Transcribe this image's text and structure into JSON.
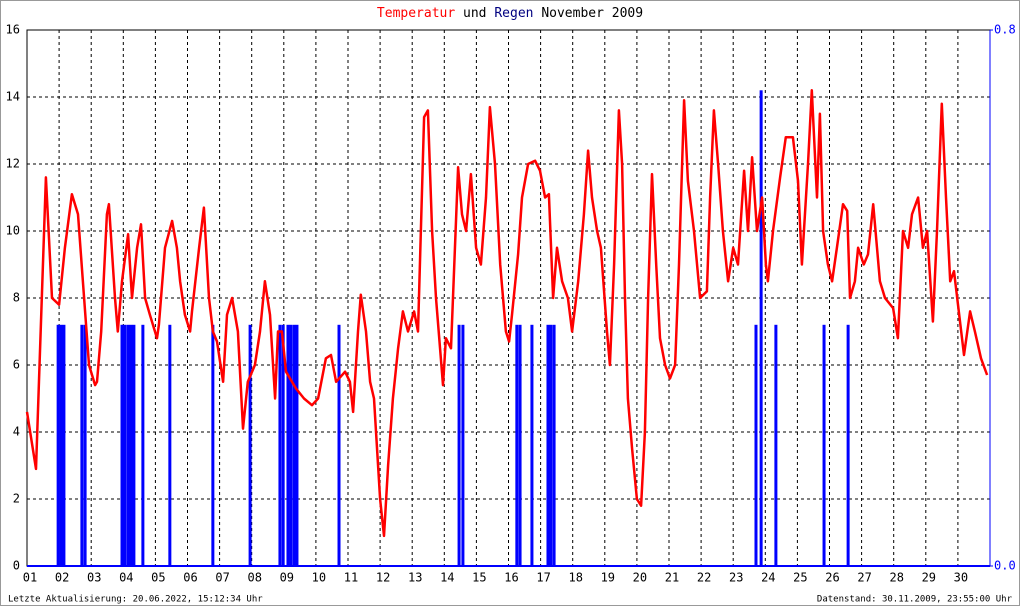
{
  "chart_data": {
    "type": "line",
    "title_connector": "und",
    "title_period": "November 2009",
    "footer_left": "Letzte Aktualisierung: 20.06.2022, 15:12:34 Uhr",
    "footer_right": "Datenstand: 30.11.2009, 23:55:00 Uhr",
    "xlim": [
      1,
      31
    ],
    "xticks": [
      {
        "value": 1,
        "label": "01"
      },
      {
        "value": 2,
        "label": "02"
      },
      {
        "value": 3,
        "label": "03"
      },
      {
        "value": 4,
        "label": "04"
      },
      {
        "value": 5,
        "label": "05"
      },
      {
        "value": 6,
        "label": "06"
      },
      {
        "value": 7,
        "label": "07"
      },
      {
        "value": 8,
        "label": "08"
      },
      {
        "value": 9,
        "label": "09"
      },
      10,
      11,
      12,
      13,
      14,
      15,
      16,
      17,
      18,
      19,
      20,
      21,
      22,
      23,
      24,
      25,
      26,
      27,
      28,
      29,
      30
    ],
    "ylim": [
      0,
      16
    ],
    "yticks": [
      0,
      2,
      4,
      6,
      8,
      10,
      12,
      14,
      16
    ],
    "y2lim": [
      0,
      0.8
    ],
    "y2ticks": [
      {
        "value": 0,
        "label": "0.0"
      },
      {
        "value": 0.8,
        "label": "0.8"
      }
    ],
    "grid": true,
    "series": [
      {
        "name": "Temperatur",
        "color": "#ff0000",
        "x": [
          1.0,
          1.28,
          1.59,
          1.78,
          2.0,
          2.18,
          2.4,
          2.59,
          2.78,
          2.93,
          3.12,
          3.18,
          3.31,
          3.49,
          3.55,
          3.74,
          3.83,
          3.96,
          4.15,
          4.27,
          4.43,
          4.55,
          4.68,
          4.83,
          5.05,
          5.11,
          5.3,
          5.52,
          5.67,
          5.77,
          5.92,
          6.08,
          6.14,
          6.36,
          6.51,
          6.67,
          6.79,
          6.92,
          7.11,
          7.23,
          7.39,
          7.57,
          7.73,
          7.88,
          8.1,
          8.26,
          8.41,
          8.57,
          8.73,
          8.82,
          8.94,
          9.07,
          9.38,
          9.63,
          9.88,
          10.07,
          10.31,
          10.47,
          10.63,
          10.91,
          11.06,
          11.16,
          11.31,
          11.4,
          11.56,
          11.69,
          11.81,
          12.0,
          12.12,
          12.25,
          12.4,
          12.56,
          12.71,
          12.87,
          13.06,
          13.18,
          13.37,
          13.49,
          13.62,
          13.74,
          13.96,
          14.05,
          14.21,
          14.43,
          14.55,
          14.68,
          14.83,
          14.99,
          15.14,
          15.3,
          15.42,
          15.58,
          15.74,
          15.92,
          16.02,
          16.11,
          16.3,
          16.42,
          16.61,
          16.83,
          16.98,
          17.14,
          17.26,
          17.39,
          17.51,
          17.67,
          17.85,
          17.98,
          18.17,
          18.35,
          18.48,
          18.6,
          18.76,
          18.88,
          19.07,
          19.16,
          19.29,
          19.44,
          19.54,
          19.63,
          19.72,
          19.85,
          20.0,
          20.13,
          20.25,
          20.35,
          20.47,
          20.6,
          20.72,
          20.88,
          21.03,
          21.19,
          21.31,
          21.47,
          21.59,
          21.78,
          21.97,
          22.18,
          22.28,
          22.4,
          22.53,
          22.68,
          22.84,
          23.0,
          23.15,
          23.34,
          23.46,
          23.59,
          23.74,
          23.9,
          24.02,
          24.08,
          24.24,
          24.46,
          24.64,
          24.86,
          25.02,
          25.14,
          25.33,
          25.45,
          25.61,
          25.7,
          25.8,
          25.95,
          26.08,
          26.23,
          26.42,
          26.55,
          26.64,
          26.79,
          26.89,
          27.07,
          27.2,
          27.36,
          27.48,
          27.57,
          27.73,
          27.98,
          28.13,
          28.29,
          28.45,
          28.57,
          28.76,
          28.91,
          29.04,
          29.22,
          29.35,
          29.5,
          29.63,
          29.76,
          29.88,
          30.19,
          30.38,
          30.53,
          30.72,
          30.91
        ],
        "values": [
          4.6,
          2.9,
          11.6,
          8.0,
          7.8,
          9.5,
          11.1,
          10.5,
          8.0,
          6.0,
          5.4,
          5.5,
          7.0,
          10.5,
          10.8,
          8.0,
          7.0,
          8.5,
          9.9,
          8.0,
          9.5,
          10.2,
          8.0,
          7.5,
          6.8,
          7.2,
          9.5,
          10.3,
          9.5,
          8.5,
          7.5,
          7.0,
          7.6,
          9.5,
          10.7,
          8.0,
          7.0,
          6.7,
          5.5,
          7.5,
          8.0,
          7.0,
          4.1,
          5.5,
          6.0,
          7.0,
          8.5,
          7.5,
          5.0,
          7.0,
          7.0,
          5.8,
          5.3,
          5.0,
          4.8,
          5.0,
          6.2,
          6.3,
          5.5,
          5.8,
          5.5,
          4.6,
          7.0,
          8.1,
          7.0,
          5.5,
          5.0,
          2.0,
          0.9,
          3.0,
          5.0,
          6.5,
          7.6,
          7.0,
          7.6,
          7.0,
          13.4,
          13.6,
          10.0,
          8.0,
          5.4,
          6.8,
          6.5,
          11.9,
          10.5,
          10.0,
          11.7,
          9.5,
          9.0,
          11.0,
          13.7,
          12.0,
          9.0,
          7.0,
          6.7,
          7.5,
          9.3,
          11.0,
          12.0,
          12.1,
          11.8,
          11.0,
          11.1,
          8.0,
          9.5,
          8.5,
          8.0,
          7.0,
          8.5,
          10.5,
          12.4,
          11.0,
          10.0,
          9.5,
          7.0,
          6.0,
          9.0,
          13.6,
          12.0,
          8.0,
          5.0,
          3.5,
          2.0,
          1.8,
          4.0,
          8.0,
          11.7,
          9.0,
          6.8,
          6.0,
          5.6,
          6.0,
          9.0,
          13.9,
          11.5,
          10.0,
          8.0,
          8.2,
          11.0,
          13.6,
          12.0,
          10.0,
          8.5,
          9.5,
          9.0,
          11.8,
          10.0,
          12.2,
          10.0,
          11.0,
          9.0,
          8.5,
          10.0,
          11.6,
          12.8,
          12.8,
          11.5,
          9.0,
          12.0,
          14.2,
          11.0,
          13.5,
          10.0,
          9.0,
          8.5,
          9.5,
          10.8,
          10.6,
          8.0,
          8.5,
          9.5,
          9.0,
          9.3,
          10.8,
          9.5,
          8.5,
          8.0,
          7.7,
          6.8,
          10.0,
          9.5,
          10.5,
          11.0,
          9.5,
          10.0,
          7.3,
          10.0,
          13.8,
          11.0,
          8.5,
          8.8,
          6.3,
          7.6,
          7.0,
          6.2,
          5.7
        ]
      },
      {
        "name": "Regen",
        "color": "#0000ff",
        "axis": "y2",
        "x": [
          1.97,
          2.06,
          2.15,
          2.71,
          2.81,
          3.96,
          4.05,
          4.15,
          4.24,
          4.33,
          4.61,
          5.45,
          6.79,
          7.95,
          8.88,
          8.98,
          9.13,
          9.22,
          9.32,
          9.41,
          10.72,
          14.46,
          14.58,
          16.26,
          16.36,
          16.73,
          17.23,
          17.32,
          17.42,
          23.71,
          23.87,
          24.33,
          25.83,
          26.58
        ],
        "values": [
          0.36,
          0.36,
          0.36,
          0.36,
          0.36,
          0.36,
          0.36,
          0.36,
          0.36,
          0.36,
          0.36,
          0.36,
          0.36,
          0.36,
          0.36,
          0.36,
          0.36,
          0.36,
          0.36,
          0.36,
          0.36,
          0.36,
          0.36,
          0.36,
          0.36,
          0.36,
          0.36,
          0.36,
          0.36,
          0.36,
          0.71,
          0.36,
          0.36,
          0.36
        ]
      }
    ]
  }
}
